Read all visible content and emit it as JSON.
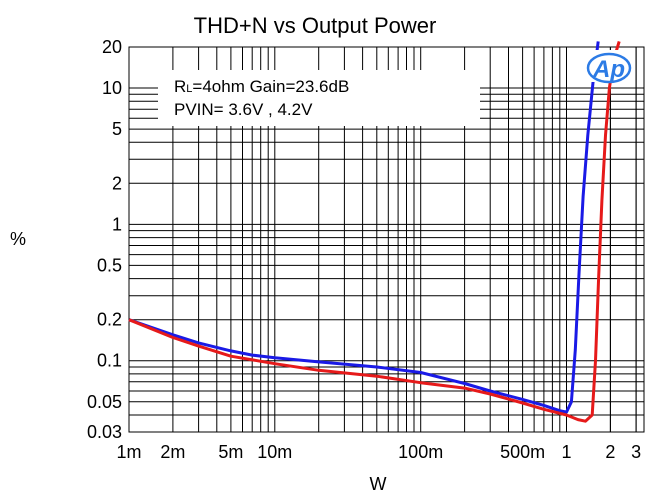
{
  "chart_data": {
    "type": "line",
    "title": "THD+N vs Output Power",
    "xlabel": "W",
    "ylabel": "%",
    "x_scale": "log",
    "y_scale": "log",
    "xlim": [
      0.001,
      3.4
    ],
    "ylim": [
      0.03,
      20
    ],
    "grid": true,
    "x_ticks": [
      {
        "value": 0.001,
        "label": "1m"
      },
      {
        "value": 0.002,
        "label": "2m"
      },
      {
        "value": 0.005,
        "label": "5m"
      },
      {
        "value": 0.01,
        "label": "10m"
      },
      {
        "value": 0.1,
        "label": "100m"
      },
      {
        "value": 0.5,
        "label": "500m"
      },
      {
        "value": 1,
        "label": "1"
      },
      {
        "value": 2,
        "label": "2"
      },
      {
        "value": 3,
        "label": "3"
      }
    ],
    "y_ticks": [
      {
        "value": 20,
        "label": "20"
      },
      {
        "value": 10,
        "label": "10"
      },
      {
        "value": 5,
        "label": "5"
      },
      {
        "value": 2,
        "label": "2"
      },
      {
        "value": 1,
        "label": "1"
      },
      {
        "value": 0.5,
        "label": "0.5"
      },
      {
        "value": 0.2,
        "label": "0.2"
      },
      {
        "value": 0.1,
        "label": "0.1"
      },
      {
        "value": 0.05,
        "label": "0.05"
      },
      {
        "value": 0.03,
        "label": "0.03"
      }
    ],
    "annotations": {
      "line1_main": "R",
      "line1_sub": "L",
      "line1_rest": "=4ohm Gain=23.6dB",
      "line2": "PVIN= 3.6V , 4.2V"
    },
    "logo_text": "Ap",
    "series": [
      {
        "color": "#1a1ae6",
        "points": [
          [
            0.001,
            0.2
          ],
          [
            0.002,
            0.155
          ],
          [
            0.003,
            0.135
          ],
          [
            0.005,
            0.118
          ],
          [
            0.007,
            0.11
          ],
          [
            0.01,
            0.105
          ],
          [
            0.02,
            0.098
          ],
          [
            0.05,
            0.09
          ],
          [
            0.1,
            0.082
          ],
          [
            0.2,
            0.068
          ],
          [
            0.3,
            0.06
          ],
          [
            0.5,
            0.052
          ],
          [
            0.7,
            0.047
          ],
          [
            0.9,
            0.043
          ],
          [
            1.0,
            0.042
          ],
          [
            1.08,
            0.05
          ],
          [
            1.15,
            0.12
          ],
          [
            1.22,
            0.45
          ],
          [
            1.3,
            1.6
          ],
          [
            1.4,
            4.5
          ],
          [
            1.52,
            11
          ],
          [
            1.65,
            22
          ]
        ]
      },
      {
        "color": "#e61a1a",
        "points": [
          [
            0.001,
            0.2
          ],
          [
            0.002,
            0.148
          ],
          [
            0.003,
            0.128
          ],
          [
            0.005,
            0.108
          ],
          [
            0.01,
            0.095
          ],
          [
            0.02,
            0.085
          ],
          [
            0.05,
            0.077
          ],
          [
            0.1,
            0.069
          ],
          [
            0.2,
            0.063
          ],
          [
            0.3,
            0.057
          ],
          [
            0.5,
            0.049
          ],
          [
            0.7,
            0.044
          ],
          [
            1.0,
            0.04
          ],
          [
            1.2,
            0.037
          ],
          [
            1.35,
            0.036
          ],
          [
            1.5,
            0.04
          ],
          [
            1.58,
            0.1
          ],
          [
            1.66,
            0.4
          ],
          [
            1.75,
            1.5
          ],
          [
            1.85,
            4.5
          ],
          [
            1.97,
            10
          ],
          [
            2.1,
            16
          ],
          [
            2.3,
            22
          ]
        ]
      }
    ]
  }
}
